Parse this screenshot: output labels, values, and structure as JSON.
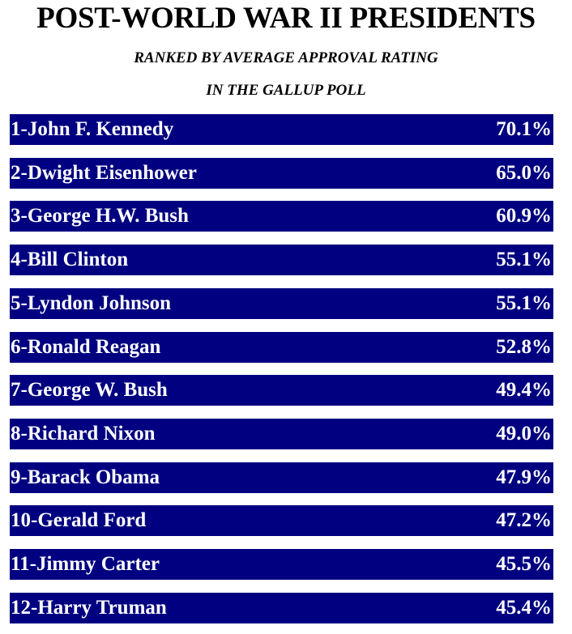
{
  "title": "POST-WORLD WAR II PRESIDENTS",
  "subtitle_line1": "RANKED BY AVERAGE APPROVAL RATING",
  "subtitle_line2": "IN THE GALLUP POLL",
  "colors": {
    "bar": "#000080",
    "bar_text": "#ffffff",
    "background": "#ffffff",
    "title_text": "#000000"
  },
  "chart_data": {
    "type": "table",
    "title": "POST-WORLD WAR II PRESIDENTS",
    "subtitle": "RANKED BY AVERAGE APPROVAL RATING IN THE GALLUP POLL",
    "rows": [
      {
        "label": "1-John F. Kennedy",
        "value": 70.1,
        "display": "70.1%"
      },
      {
        "label": "2-Dwight Eisenhower",
        "value": 65.0,
        "display": "65.0%"
      },
      {
        "label": "3-George H.W. Bush",
        "value": 60.9,
        "display": "60.9%"
      },
      {
        "label": "4-Bill Clinton",
        "value": 55.1,
        "display": "55.1%"
      },
      {
        "label": "5-Lyndon Johnson",
        "value": 55.1,
        "display": "55.1%"
      },
      {
        "label": "6-Ronald Reagan",
        "value": 52.8,
        "display": "52.8%"
      },
      {
        "label": "7-George W. Bush",
        "value": 49.4,
        "display": "49.4%"
      },
      {
        "label": "8-Richard Nixon",
        "value": 49.0,
        "display": "49.0%"
      },
      {
        "label": "9-Barack Obama",
        "value": 47.9,
        "display": "47.9%"
      },
      {
        "label": "10-Gerald Ford",
        "value": 47.2,
        "display": "47.2%"
      },
      {
        "label": "11-Jimmy Carter",
        "value": 45.5,
        "display": "45.5%"
      },
      {
        "label": "12-Harry Truman",
        "value": 45.4,
        "display": "45.4%"
      }
    ]
  }
}
